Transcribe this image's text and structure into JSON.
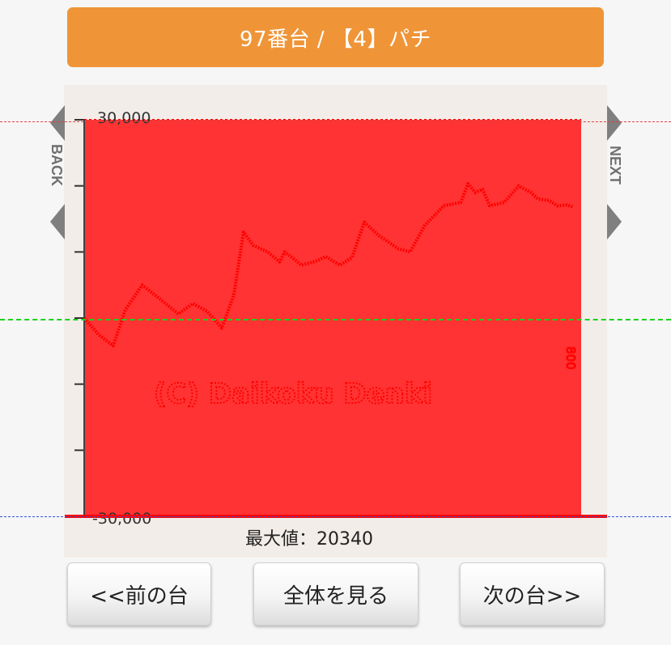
{
  "header": {
    "title": "97番台 / 【4】パチ"
  },
  "nav": {
    "back_label": "BACK",
    "next_label": "NEXT"
  },
  "colors": {
    "accent": "#ef9538",
    "graph_fill": "#ff3333",
    "graph_line": "#ff0000"
  },
  "chart_data": {
    "type": "area",
    "ylim": [
      -30000,
      30000
    ],
    "yticks": [
      30000,
      20000,
      10000,
      0,
      -10000,
      -20000,
      -30000
    ],
    "tick_labels": {
      "top": "30,000",
      "bottom": "-30,000"
    },
    "max_label": "最大値：20340",
    "watermark": "(C) Daikoku Denki",
    "end_label": "800",
    "series": [
      {
        "x": [
          0,
          12,
          24,
          34,
          48,
          62,
          78,
          90,
          102,
          114,
          124,
          132,
          140,
          152,
          162,
          166,
          172,
          180,
          192,
          200,
          212,
          222,
          232,
          244,
          260,
          270,
          282,
          298,
          312,
          318,
          324,
          330,
          336,
          348,
          360,
          370,
          376,
          385,
          392,
          400,
          405
        ],
        "values": [
          0,
          -2500,
          -4200,
          1200,
          5000,
          3000,
          600,
          2200,
          1000,
          -1500,
          3500,
          13000,
          11000,
          10000,
          8500,
          10000,
          9200,
          8000,
          8600,
          9300,
          8000,
          9200,
          14500,
          12500,
          10500,
          10000,
          14000,
          17000,
          17500,
          20340,
          19000,
          19500,
          17000,
          17500,
          20000,
          19000,
          18000,
          17800,
          17000,
          17100,
          16800
        ]
      }
    ]
  },
  "buttons": {
    "prev": "<<前の台",
    "all": "全体を見る",
    "next": "次の台>>"
  }
}
